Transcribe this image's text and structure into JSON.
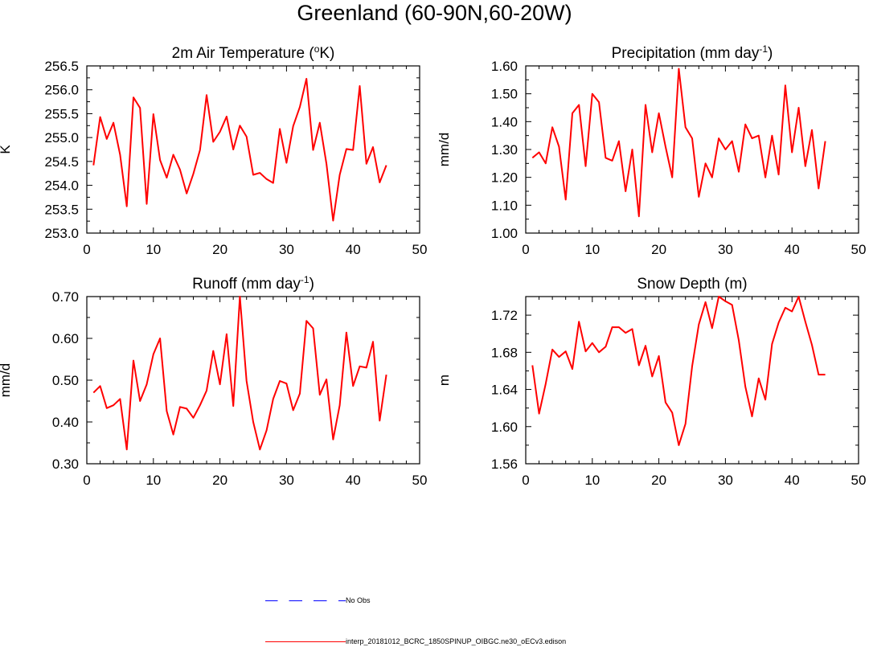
{
  "title": "Greenland (60-90N,60-20W)",
  "chart_data": [
    {
      "type": "line",
      "title": "2m Air Temperature (",
      "title_sup": "o",
      "title_tail": "K)",
      "ylabel": "K",
      "xlim": [
        0,
        50
      ],
      "ylim": [
        253.0,
        256.5
      ],
      "xticks": [
        0,
        10,
        20,
        30,
        40,
        50
      ],
      "yticks": [
        253.0,
        253.5,
        254.0,
        254.5,
        255.0,
        255.5,
        256.0,
        256.5
      ],
      "ytick_labels": [
        "253.0",
        "253.5",
        "254.0",
        "254.5",
        "255.0",
        "255.5",
        "256.0",
        "256.5"
      ],
      "x": [
        1,
        2,
        3,
        4,
        5,
        6,
        7,
        8,
        9,
        10,
        11,
        12,
        13,
        14,
        15,
        16,
        17,
        18,
        19,
        20,
        21,
        22,
        23,
        24,
        25,
        26,
        27,
        28,
        29,
        30,
        31,
        32,
        33,
        34,
        35,
        36,
        37,
        38,
        39,
        40,
        41,
        42,
        43,
        44,
        45
      ],
      "series": [
        {
          "name": "interp_20181012_BCRC_1850SPINUP_OIBGC.ne30_oECv3.edison",
          "color": "#ff0000",
          "values": [
            254.42,
            255.43,
            254.97,
            255.31,
            254.64,
            253.56,
            255.84,
            255.62,
            253.61,
            255.49,
            254.53,
            254.16,
            254.64,
            254.33,
            253.83,
            254.24,
            254.74,
            255.89,
            254.91,
            255.12,
            255.44,
            254.75,
            255.25,
            255.02,
            254.22,
            254.26,
            254.13,
            254.05,
            255.18,
            254.47,
            255.24,
            255.64,
            256.23,
            254.74,
            255.31,
            254.45,
            253.26,
            254.22,
            254.76,
            254.74,
            256.08,
            254.45,
            254.8,
            254.06,
            254.42
          ]
        }
      ]
    },
    {
      "type": "line",
      "title": "Precipitation (mm day",
      "title_sup": "-1",
      "title_tail": ")",
      "ylabel": "mm/d",
      "xlim": [
        0,
        50
      ],
      "ylim": [
        1.0,
        1.6
      ],
      "xticks": [
        0,
        10,
        20,
        30,
        40,
        50
      ],
      "yticks": [
        1.0,
        1.1,
        1.2,
        1.3,
        1.4,
        1.5,
        1.6
      ],
      "ytick_labels": [
        "1.00",
        "1.10",
        "1.20",
        "1.30",
        "1.40",
        "1.50",
        "1.60"
      ],
      "x": [
        1,
        2,
        3,
        4,
        5,
        6,
        7,
        8,
        9,
        10,
        11,
        12,
        13,
        14,
        15,
        16,
        17,
        18,
        19,
        20,
        21,
        22,
        23,
        24,
        25,
        26,
        27,
        28,
        29,
        30,
        31,
        32,
        33,
        34,
        35,
        36,
        37,
        38,
        39,
        40,
        41,
        42,
        43,
        44,
        45
      ],
      "series": [
        {
          "name": "interp_20181012_BCRC_1850SPINUP_OIBGC.ne30_oECv3.edison",
          "color": "#ff0000",
          "values": [
            1.27,
            1.29,
            1.25,
            1.38,
            1.31,
            1.12,
            1.43,
            1.46,
            1.24,
            1.5,
            1.47,
            1.27,
            1.26,
            1.33,
            1.15,
            1.3,
            1.06,
            1.46,
            1.29,
            1.43,
            1.31,
            1.2,
            1.59,
            1.38,
            1.34,
            1.13,
            1.25,
            1.2,
            1.34,
            1.3,
            1.33,
            1.22,
            1.39,
            1.34,
            1.35,
            1.2,
            1.35,
            1.21,
            1.53,
            1.29,
            1.45,
            1.24,
            1.37,
            1.16,
            1.33
          ]
        }
      ]
    },
    {
      "type": "line",
      "title": "Runoff (mm day",
      "title_sup": "-1",
      "title_tail": ")",
      "ylabel": "mm/d",
      "xlim": [
        0,
        50
      ],
      "ylim": [
        0.3,
        0.7
      ],
      "xticks": [
        0,
        10,
        20,
        30,
        40,
        50
      ],
      "yticks": [
        0.3,
        0.4,
        0.5,
        0.6,
        0.7
      ],
      "ytick_labels": [
        "0.30",
        "0.40",
        "0.50",
        "0.60",
        "0.70"
      ],
      "x": [
        1,
        2,
        3,
        4,
        5,
        6,
        7,
        8,
        9,
        10,
        11,
        12,
        13,
        14,
        15,
        16,
        17,
        18,
        19,
        20,
        21,
        22,
        23,
        24,
        25,
        26,
        27,
        28,
        29,
        30,
        31,
        32,
        33,
        34,
        35,
        36,
        37,
        38,
        39,
        40,
        41,
        42,
        43,
        44,
        45
      ],
      "series": [
        {
          "name": "interp_20181012_BCRC_1850SPINUP_OIBGC.ne30_oECv3.edison",
          "color": "#ff0000",
          "values": [
            0.47,
            0.486,
            0.433,
            0.44,
            0.455,
            0.334,
            0.547,
            0.45,
            0.49,
            0.562,
            0.6,
            0.426,
            0.37,
            0.436,
            0.432,
            0.41,
            0.44,
            0.475,
            0.57,
            0.49,
            0.61,
            0.438,
            0.7,
            0.498,
            0.4,
            0.334,
            0.38,
            0.455,
            0.498,
            0.492,
            0.428,
            0.468,
            0.642,
            0.624,
            0.465,
            0.502,
            0.358,
            0.44,
            0.614,
            0.486,
            0.533,
            0.53,
            0.592,
            0.403,
            0.513
          ]
        }
      ]
    },
    {
      "type": "line",
      "title": "Snow Depth (m)",
      "title_sup": "",
      "title_tail": "",
      "ylabel": "m",
      "xlim": [
        0,
        50
      ],
      "ylim": [
        1.56,
        1.74
      ],
      "xticks": [
        0,
        10,
        20,
        30,
        40,
        50
      ],
      "yticks": [
        1.56,
        1.6,
        1.64,
        1.68,
        1.72
      ],
      "ytick_labels": [
        "1.56",
        "1.60",
        "1.64",
        "1.68",
        "1.72"
      ],
      "x": [
        1,
        2,
        3,
        4,
        5,
        6,
        7,
        8,
        9,
        10,
        11,
        12,
        13,
        14,
        15,
        16,
        17,
        18,
        19,
        20,
        21,
        22,
        23,
        24,
        25,
        26,
        27,
        28,
        29,
        30,
        31,
        32,
        33,
        34,
        35,
        36,
        37,
        38,
        39,
        40,
        41,
        42,
        43,
        44,
        45
      ],
      "series": [
        {
          "name": "interp_20181012_BCRC_1850SPINUP_OIBGC.ne30_oECv3.edison",
          "color": "#ff0000",
          "values": [
            1.666,
            1.614,
            1.646,
            1.683,
            1.675,
            1.681,
            1.662,
            1.713,
            1.681,
            1.69,
            1.68,
            1.686,
            1.707,
            1.707,
            1.701,
            1.705,
            1.666,
            1.687,
            1.654,
            1.676,
            1.626,
            1.615,
            1.58,
            1.603,
            1.665,
            1.71,
            1.734,
            1.706,
            1.74,
            1.735,
            1.731,
            1.693,
            1.643,
            1.611,
            1.652,
            1.629,
            1.689,
            1.712,
            1.728,
            1.724,
            1.74,
            1.713,
            1.688,
            1.656,
            1.656
          ]
        }
      ]
    }
  ],
  "legend": {
    "entries": [
      {
        "label": "No Obs",
        "color": "#0000ff",
        "style": "dashed"
      },
      {
        "label": "interp_20181012_BCRC_1850SPINUP_OIBGC.ne30_oECv3.edison",
        "color": "#ff0000",
        "style": "solid"
      }
    ]
  }
}
